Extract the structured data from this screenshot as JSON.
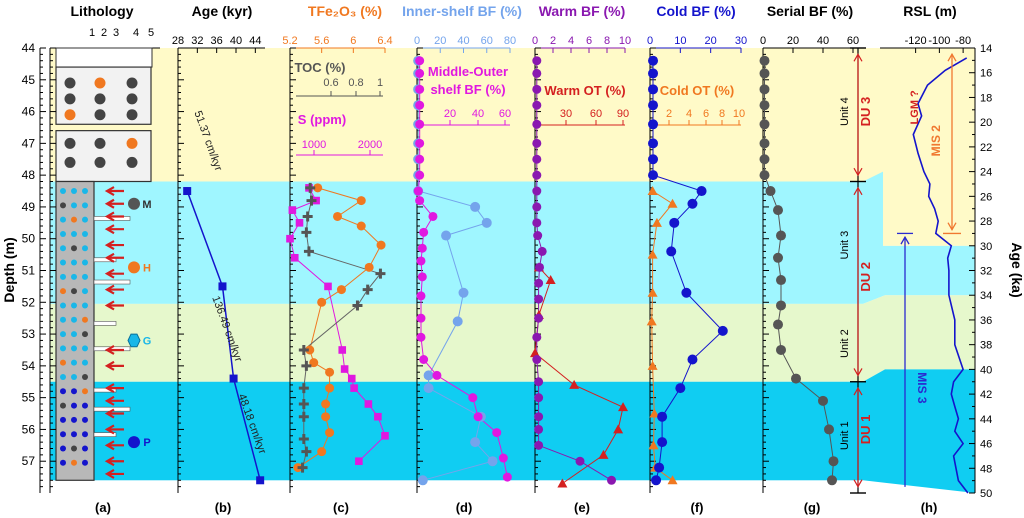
{
  "panel_letters": [
    "(a)",
    "(b)",
    "(c)",
    "(d)",
    "(e)",
    "(f)",
    "(g)",
    "(h)"
  ],
  "labels": {
    "depth_axis": "Depth (m)",
    "age_axis": "Age (ka)",
    "unit4": "Unit 4",
    "unit3": "Unit 3",
    "unit2": "Unit 2",
    "unit1": "Unit 1",
    "du3": "DU 3",
    "du2": "DU 2",
    "du1": "DU 1",
    "mis2": "MIS 2",
    "mis3": "MIS 3",
    "lgm": "LGM ?",
    "rate1": "51.37 cm/kyr",
    "rate2": "136.49 cm/kyr",
    "rate3": "48.18 cm/kyr",
    "leg_m": "M",
    "leg_h": "H",
    "leg_g": "G",
    "leg_p": "P"
  },
  "colors": {
    "band_yellow": "#fffac8",
    "band_cyan": "#9ff6ff",
    "band_green": "#e6f8cc",
    "band_blue": "#10cdf2",
    "red": "#d42020",
    "orange": "#f07820",
    "magenta": "#e018e0",
    "lightblue": "#74a4ec",
    "purple": "#8a18b0",
    "navy": "#1414cc",
    "gray": "#555555",
    "mis2": "#f07830",
    "mis3": "#2a2ad0"
  },
  "chart_data": [
    {
      "type": "strat-column",
      "title": "Lithology",
      "xticks": [
        "1",
        "2",
        "3",
        "4",
        "5"
      ],
      "depth_range": [
        44,
        58
      ],
      "boxes": [
        [
          44.6,
          46.4
        ],
        [
          46.6,
          48.2
        ],
        [
          48.2,
          57.6
        ]
      ],
      "legend": [
        "M",
        "H",
        "G",
        "P"
      ]
    },
    {
      "type": "line",
      "title": "Age (kyr)",
      "xlim": [
        28,
        46
      ],
      "xticks": [
        28,
        32,
        36,
        40,
        44
      ],
      "x": [
        29.9,
        37.2,
        39.5,
        45.0
      ],
      "depth": [
        48.5,
        51.5,
        54.4,
        57.6
      ],
      "rates": [
        "51.37 cm/kyr",
        "136.49 cm/kyr",
        "48.18 cm/kyr"
      ]
    },
    {
      "type": "line",
      "title": "TFe2O3 (%)",
      "xlim": [
        5.2,
        6.4
      ],
      "xticks": [
        5.2,
        5.6,
        6,
        6.4
      ],
      "sub_axes": [
        {
          "label": "TOC (%)",
          "ticks": [
            0.6,
            0.8,
            1
          ]
        },
        {
          "label": "S (ppm)",
          "ticks": [
            1000,
            2000
          ]
        }
      ],
      "series": [
        {
          "name": "TFe2O3",
          "depth": [
            48.4,
            48.8,
            49.3,
            49.6,
            50.2,
            50.9,
            51.6,
            52.0,
            53.5,
            53.9,
            54.2,
            54.7,
            55.2,
            55.6,
            56.1,
            56.7,
            57.2
          ],
          "values": [
            5.55,
            6.1,
            5.8,
            6.1,
            6.35,
            6.2,
            5.85,
            5.6,
            5.45,
            5.5,
            5.7,
            5.7,
            5.65,
            5.65,
            5.7,
            5.6,
            5.3
          ]
        },
        {
          "name": "TOC",
          "depth": [
            48.4,
            48.8,
            49.3,
            49.8,
            50.4,
            51.1,
            51.6,
            52.1,
            53.5,
            54.0,
            54.7,
            55.2,
            55.6,
            56.3,
            56.7,
            57.2
          ],
          "values": [
            0.43,
            0.44,
            0.41,
            0.4,
            0.42,
            0.98,
            0.88,
            0.8,
            0.38,
            0.4,
            0.38,
            0.38,
            0.38,
            0.38,
            0.4,
            0.37
          ]
        },
        {
          "name": "S",
          "depth": [
            48.4,
            48.8,
            49.1,
            49.5,
            50.0,
            50.6,
            51.5,
            53.5,
            54.1,
            54.4,
            54.7,
            55.2,
            55.6,
            56.2,
            57.0
          ],
          "values": [
            800,
            950,
            450,
            600,
            400,
            500,
            1200,
            1500,
            1550,
            1700,
            1750,
            2050,
            2250,
            2400,
            1850
          ]
        }
      ]
    },
    {
      "type": "line",
      "title": "Inner-shelf BF (%)",
      "xlim": [
        0,
        80
      ],
      "xticks": [
        0,
        20,
        40,
        60,
        80
      ],
      "sub_axes": [
        {
          "label": "Middle-Outer shelf BF (%)",
          "ticks": [
            20,
            40,
            60
          ]
        }
      ],
      "series": [
        {
          "name": "Inner-shelf BF",
          "depth": [
            44.4,
            44.8,
            45.3,
            45.8,
            46.4,
            47.0,
            47.5,
            48.0,
            48.5,
            49.0,
            49.5,
            49.9,
            51.7,
            52.6,
            54.3,
            54.7,
            55.6,
            56.4,
            57.0,
            57.6
          ],
          "values": [
            1,
            1,
            1,
            1,
            1,
            1,
            1,
            1,
            1,
            50,
            60,
            25,
            40,
            35,
            10,
            10,
            55,
            50,
            65,
            5
          ]
        },
        {
          "name": "Middle-Outer shelf BF",
          "depth": [
            44.4,
            44.8,
            45.3,
            45.8,
            46.4,
            47.0,
            47.5,
            48.0,
            48.5,
            48.8,
            49.3,
            49.8,
            50.3,
            50.7,
            51.2,
            51.8,
            52.5,
            53.1,
            53.8,
            54.3,
            55.0,
            55.6,
            56.1,
            56.9,
            57.5
          ],
          "values": [
            2,
            2,
            2,
            2,
            2,
            2,
            2,
            2,
            1,
            2,
            12,
            5,
            4,
            3,
            4,
            3,
            3,
            3,
            5,
            15,
            42,
            46,
            60,
            65,
            68
          ]
        }
      ]
    },
    {
      "type": "line",
      "title": "Warm BF (%)",
      "xlim": [
        0,
        10
      ],
      "xticks": [
        0,
        2,
        4,
        6,
        8,
        10
      ],
      "sub_axes": [
        {
          "label": "Warm OT (%)",
          "ticks": [
            30,
            60,
            90
          ]
        }
      ],
      "series": [
        {
          "name": "Warm BF",
          "depth": [
            44.4,
            44.8,
            45.3,
            45.8,
            46.4,
            47.0,
            47.5,
            48.0,
            48.5,
            49.0,
            49.5,
            49.9,
            50.4,
            50.9,
            51.4,
            51.9,
            52.5,
            53.1,
            53.8,
            54.5,
            55.0,
            55.6,
            56.0,
            56.5,
            57.0,
            57.6
          ],
          "values": [
            0.2,
            0.2,
            0.2,
            0.2,
            0.2,
            0.2,
            0.2,
            0.2,
            0.2,
            0.2,
            0.2,
            0.3,
            0.8,
            0.5,
            0.4,
            0.4,
            0.4,
            0.2,
            0.2,
            0.4,
            0.4,
            0.4,
            0.4,
            0.4,
            5.0,
            8.5
          ]
        },
        {
          "name": "Warm OT",
          "depth": [
            50.9,
            51.3,
            52.4,
            53.6,
            54.6,
            55.3,
            56.0,
            56.8,
            57.7
          ],
          "values": [
            4,
            16,
            4,
            0,
            40,
            90,
            85,
            70,
            28
          ]
        }
      ]
    },
    {
      "type": "line",
      "title": "Cold BF (%)",
      "xlim": [
        0,
        30
      ],
      "xticks": [
        0,
        10,
        20,
        30
      ],
      "sub_axes": [
        {
          "label": "Cold OT (%)",
          "ticks": [
            2,
            4,
            6,
            8,
            10
          ]
        }
      ],
      "series": [
        {
          "name": "Cold BF",
          "depth": [
            44.4,
            44.8,
            45.3,
            45.8,
            46.4,
            47.0,
            47.5,
            48.0,
            48.5,
            48.9,
            49.5,
            50.4,
            51.7,
            52.9,
            53.8,
            54.7,
            55.6,
            56.4,
            57.2,
            57.6
          ],
          "values": [
            1,
            1,
            1,
            1,
            1,
            1,
            1,
            1,
            17,
            14,
            8,
            7,
            12,
            24,
            14,
            10,
            4,
            4,
            3,
            2
          ]
        },
        {
          "name": "Cold OT",
          "depth": [
            48.5,
            48.9,
            49.5,
            50.5,
            51.7,
            52.6,
            54.0,
            55.5,
            56.5,
            57.2,
            57.6
          ],
          "values": [
            0.3,
            2.6,
            0.8,
            0.3,
            0.3,
            0.2,
            0.3,
            0.5,
            0.4,
            0.6,
            2.6
          ]
        }
      ]
    },
    {
      "type": "line",
      "title": "Serial BF (%)",
      "xlim": [
        0,
        60
      ],
      "xticks": [
        0,
        20,
        40,
        60
      ],
      "series": [
        {
          "name": "Serial BF",
          "depth": [
            44.4,
            44.8,
            45.3,
            45.8,
            46.4,
            47.0,
            47.5,
            48.0,
            48.5,
            49.1,
            49.9,
            50.6,
            51.3,
            52.1,
            52.7,
            53.5,
            54.4,
            55.1,
            56.0,
            57.0,
            57.6
          ],
          "values": [
            1,
            1,
            1,
            1,
            1,
            1,
            1,
            1,
            5,
            10,
            12,
            10,
            12,
            12,
            10,
            12,
            22,
            40,
            44,
            47,
            46
          ]
        }
      ]
    },
    {
      "type": "line",
      "title": "RSL (m)",
      "xlim": [
        -150,
        -70
      ],
      "xticks": [
        -120,
        -100,
        -80
      ],
      "age_range": [
        14,
        50
      ],
      "series": [
        {
          "name": "RSL",
          "age": [
            14.8,
            15.8,
            17,
            18.5,
            19.5,
            21,
            22.5,
            24,
            25,
            26,
            27,
            28,
            29,
            30,
            31,
            32,
            34,
            36,
            38,
            40,
            41,
            42,
            43,
            44,
            45,
            46,
            47,
            48,
            49,
            50
          ],
          "values": [
            -77,
            -95,
            -110,
            -118,
            -115,
            -122,
            -118,
            -113,
            -108,
            -109,
            -104,
            -101,
            -103,
            -90,
            -93,
            -92,
            -92,
            -87,
            -87,
            -80,
            -88,
            -90,
            -87,
            -84,
            -87,
            -80,
            -88,
            -86,
            -84,
            -76
          ]
        }
      ],
      "markers": [
        {
          "label": "LGM ?"
        },
        {
          "label": "MIS 2",
          "age_range": [
            14,
            29
          ]
        },
        {
          "label": "MIS 3",
          "age_range": [
            29,
            50
          ]
        }
      ],
      "yticks": [
        14,
        16,
        18,
        20,
        22,
        24,
        26,
        28,
        30,
        32,
        34,
        36,
        38,
        40,
        42,
        44,
        46,
        48,
        50
      ]
    }
  ]
}
